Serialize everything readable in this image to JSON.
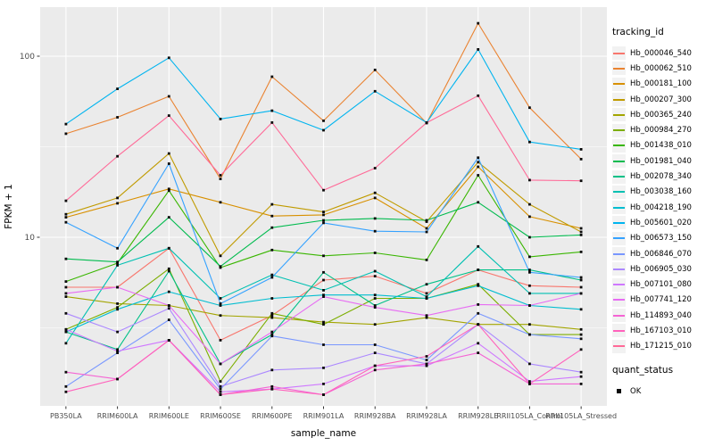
{
  "chart_data": {
    "type": "line",
    "title": "",
    "xlabel": "sample_name",
    "ylabel": "FPKM + 1",
    "y_scale": "log10",
    "y_axis_ticks": [
      100,
      10
    ],
    "y_minor_gridlines": [
      31.623,
      3.1623
    ],
    "ylim": [
      1.15,
      190
    ],
    "grid": true,
    "panel_bg": "#EBEBEB",
    "grid_color": "#FFFFFF",
    "tick_label_color": "#4D4D4D",
    "marker": {
      "shape": "square",
      "color": "#0a0a0a",
      "meaning": "quant_status OK"
    },
    "legend": {
      "position": "right",
      "tracking_title": "tracking_id",
      "quant_title": "quant_status",
      "quant_items": [
        "OK"
      ]
    },
    "categories": [
      "PB350LA",
      "RRIM600LA",
      "RRIM600LE",
      "RRIM600SE",
      "RRIM600PE",
      "RRIM901LA",
      "RRIM928BA",
      "RRIM928LA",
      "RRIM928LE",
      "RRII105LA_Control",
      "RRII105LA_Stressed"
    ],
    "series": [
      {
        "name": "Hb_000046_540",
        "color": "#F8766D",
        "values": [
          5.3,
          5.3,
          8.7,
          2.7,
          3.7,
          5.8,
          6.1,
          4.9,
          6.6,
          5.4,
          5.3
        ]
      },
      {
        "name": "Hb_000062_510",
        "color": "#EA8331",
        "values": [
          37.3,
          46,
          60,
          21,
          77,
          44,
          84,
          42.7,
          152,
          52,
          27
        ]
      },
      {
        "name": "Hb_000181_100",
        "color": "#D89000",
        "values": [
          12.9,
          15.4,
          18.5,
          15.6,
          13.1,
          13.3,
          16.5,
          11.2,
          24.5,
          13,
          11.2
        ]
      },
      {
        "name": "Hb_000207_300",
        "color": "#C09B00",
        "values": [
          13.4,
          16.5,
          29,
          7.9,
          15.2,
          13.8,
          17.6,
          12.2,
          26,
          15.2,
          10.7
        ]
      },
      {
        "name": "Hb_000365_240",
        "color": "#A3A500",
        "values": [
          4.7,
          4.3,
          4.2,
          3.7,
          3.6,
          3.4,
          3.3,
          3.6,
          3.3,
          3.3,
          3.1
        ]
      },
      {
        "name": "Hb_000984_270",
        "color": "#7CAE00",
        "values": [
          3.1,
          4.1,
          6.7,
          1.6,
          3.8,
          3.3,
          4.6,
          4.6,
          5.5,
          2.9,
          2.9
        ]
      },
      {
        "name": "Hb_001438_010",
        "color": "#39B600",
        "values": [
          5.7,
          7.2,
          18.1,
          6.8,
          8.5,
          7.9,
          8.2,
          7.5,
          22,
          7.8,
          8.3
        ]
      },
      {
        "name": "Hb_001981_040",
        "color": "#00BB4E",
        "values": [
          7.6,
          7.3,
          12.9,
          6.9,
          11.3,
          12.4,
          12.7,
          12.4,
          15.6,
          10,
          10.3
        ]
      },
      {
        "name": "Hb_002078_340",
        "color": "#00C087",
        "values": [
          3.0,
          2.4,
          6.5,
          2.0,
          2.9,
          6.4,
          4.2,
          5.5,
          6.6,
          6.6,
          5.8
        ]
      },
      {
        "name": "Hb_003038_160",
        "color": "#00C0B2",
        "values": [
          2.6,
          7.0,
          8.7,
          4.6,
          6.2,
          5.1,
          6.5,
          4.7,
          8.9,
          4.9,
          4.9
        ]
      },
      {
        "name": "Hb_004218_190",
        "color": "#00BDD0",
        "values": [
          3.0,
          4.0,
          5.0,
          4.2,
          4.6,
          4.8,
          4.8,
          4.6,
          5.4,
          4.2,
          4.0
        ]
      },
      {
        "name": "Hb_005601_020",
        "color": "#00B4EF",
        "values": [
          42.2,
          66,
          98,
          45,
          50,
          39,
          64,
          43,
          109,
          33.6,
          30.6
        ]
      },
      {
        "name": "Hb_006573_150",
        "color": "#35A2FF",
        "values": [
          12.1,
          8.7,
          25.5,
          4.3,
          6.0,
          12.0,
          10.8,
          10.7,
          27.5,
          6.4,
          6.0
        ]
      },
      {
        "name": "Hb_006846_070",
        "color": "#7997FF",
        "values": [
          1.5,
          2.3,
          3.5,
          1.45,
          2.85,
          2.55,
          2.55,
          2.1,
          3.8,
          2.9,
          2.75
        ]
      },
      {
        "name": "Hb_006905_030",
        "color": "#AC88FF",
        "values": [
          3.8,
          3.0,
          4.05,
          1.5,
          1.85,
          1.9,
          2.3,
          2.0,
          3.3,
          2.0,
          1.8
        ]
      },
      {
        "name": "Hb_007101_080",
        "color": "#CF78FF",
        "values": [
          3.1,
          2.35,
          2.7,
          1.4,
          1.45,
          1.55,
          1.95,
          1.95,
          2.6,
          1.6,
          1.7
        ]
      },
      {
        "name": "Hb_007741_120",
        "color": "#E76BF3",
        "values": [
          4.9,
          5.3,
          4.2,
          2.0,
          3.0,
          4.7,
          4.1,
          3.7,
          4.25,
          4.2,
          4.9
        ]
      },
      {
        "name": "Hb_114893_040",
        "color": "#F564D4",
        "values": [
          1.8,
          1.65,
          2.7,
          1.35,
          1.5,
          1.35,
          1.85,
          2.0,
          2.3,
          1.55,
          1.55
        ]
      },
      {
        "name": "Hb_167103_010",
        "color": "#FF62BC",
        "values": [
          1.4,
          1.65,
          2.7,
          1.35,
          1.45,
          1.35,
          1.95,
          2.2,
          3.3,
          1.55,
          2.4
        ]
      },
      {
        "name": "Hb_171215_010",
        "color": "#FF6A98",
        "values": [
          15.9,
          28,
          47,
          22,
          43,
          18.2,
          24.1,
          42.9,
          60.5,
          20.7,
          20.5
        ]
      }
    ]
  }
}
